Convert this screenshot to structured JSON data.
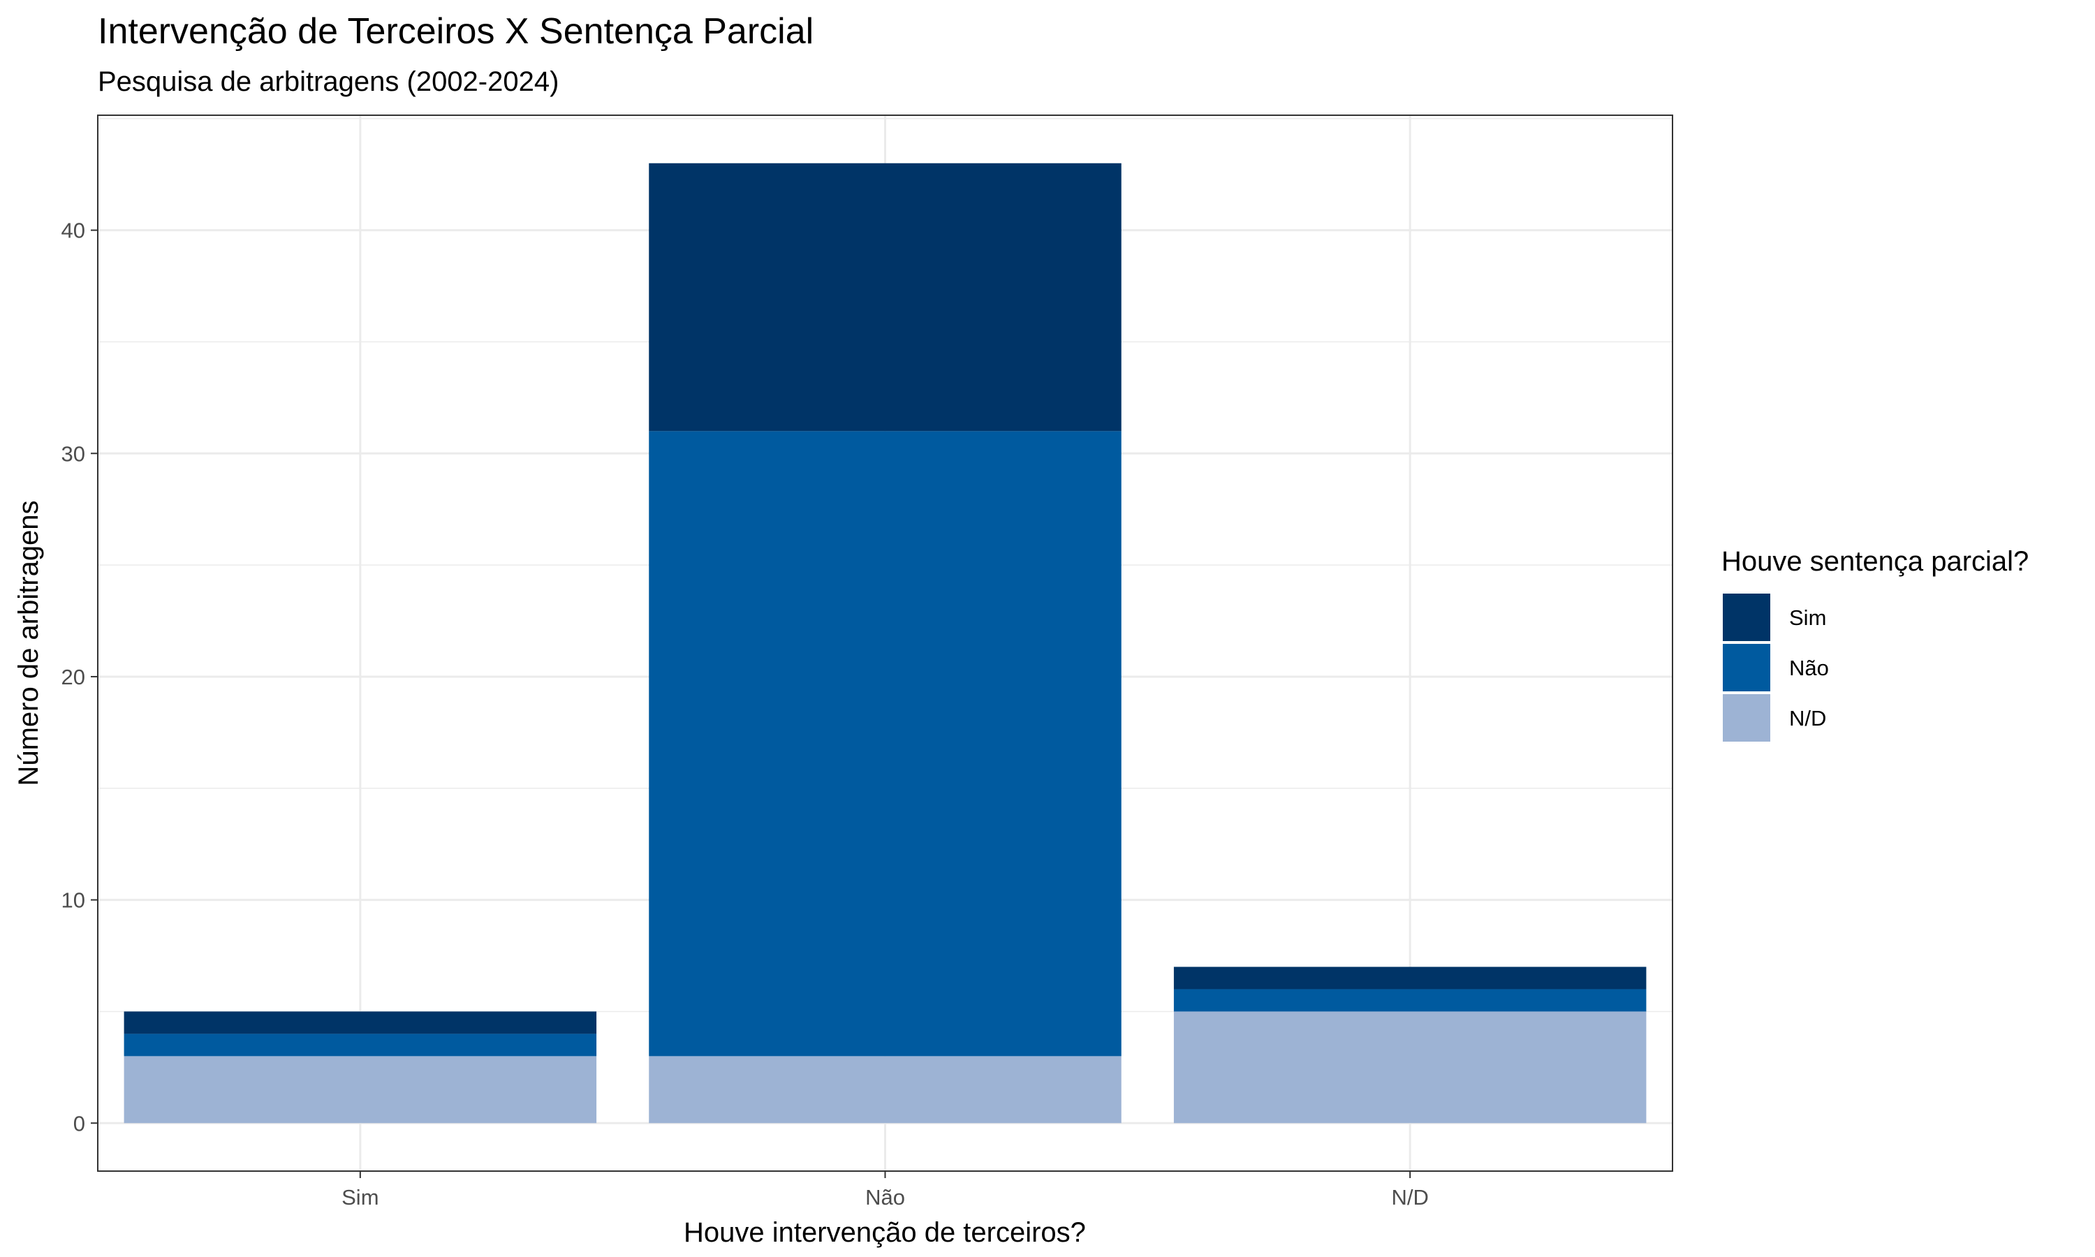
{
  "chart_data": {
    "type": "bar",
    "stacked": true,
    "title": "Intervenção de Terceiros X Sentença Parcial",
    "subtitle": "Pesquisa de arbitragens (2002-2024)",
    "xlabel": "Houve intervenção de terceiros?",
    "ylabel": "Número de arbitragens",
    "categories": [
      "Sim",
      "Não",
      "N/D"
    ],
    "yticks": [
      0,
      10,
      20,
      30,
      40
    ],
    "ylim": [
      -2.15,
      45.15
    ],
    "grid": true,
    "legend": {
      "title": "Houve sentença parcial?",
      "position": "right",
      "items": [
        "Sim",
        "Não",
        "N/D"
      ]
    },
    "series": [
      {
        "name": "N/D",
        "values": [
          3,
          3,
          5
        ],
        "color": "#9db3d4"
      },
      {
        "name": "Não",
        "values": [
          1,
          28,
          1
        ],
        "color": "#005a9f"
      },
      {
        "name": "Sim",
        "values": [
          1,
          12,
          1
        ],
        "color": "#003467"
      }
    ]
  }
}
